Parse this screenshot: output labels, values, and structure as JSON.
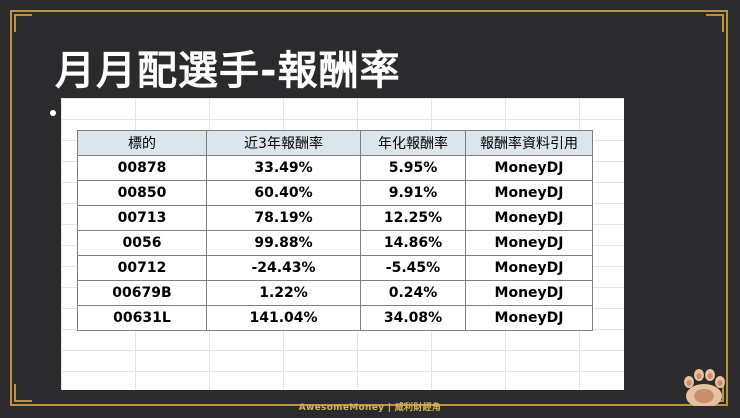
{
  "slide": {
    "title": "月月配選手-報酬率"
  },
  "table": {
    "headers": [
      "標的",
      "近3年報酬率",
      "年化報酬率",
      "報酬率資料引用"
    ],
    "rows": [
      [
        "00878",
        "33.49%",
        "5.95%",
        "MoneyDJ"
      ],
      [
        "00850",
        "60.40%",
        "9.91%",
        "MoneyDJ"
      ],
      [
        "00713",
        "78.19%",
        "12.25%",
        "MoneyDJ"
      ],
      [
        "0056",
        "99.88%",
        "14.86%",
        "MoneyDJ"
      ],
      [
        "00712",
        "-24.43%",
        "-5.45%",
        "MoneyDJ"
      ],
      [
        "00679B",
        "1.22%",
        "0.24%",
        "MoneyDJ"
      ],
      [
        "00631L",
        "141.04%",
        "34.08%",
        "MoneyDJ"
      ]
    ]
  },
  "footer": {
    "brand": "AwesomeMoney | 威利財經角"
  },
  "colors": {
    "background": "#2b2b2e",
    "frame": "#b8943f",
    "header_fill": "#dbe6ec",
    "footer_text": "#d7b35a"
  },
  "icons": {
    "mascot": "cat-paw-icon"
  }
}
